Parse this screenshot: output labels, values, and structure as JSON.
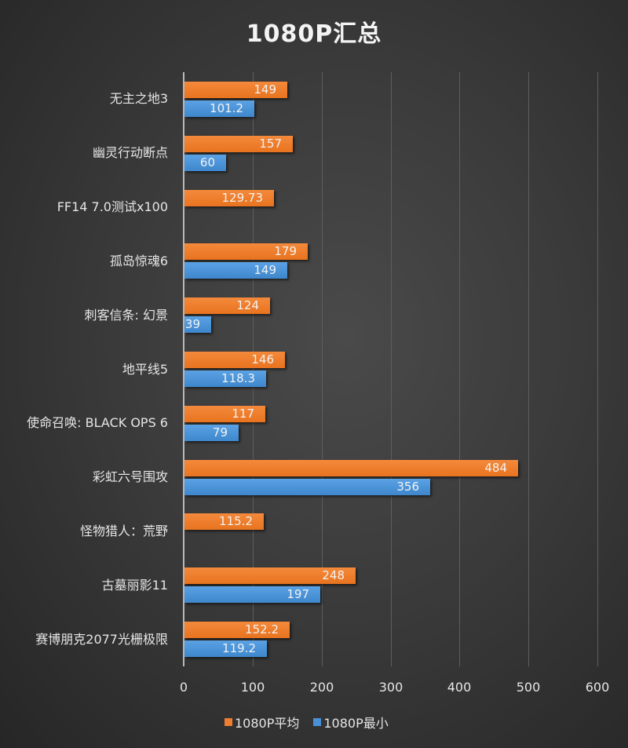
{
  "chart_data": {
    "type": "bar",
    "orientation": "horizontal",
    "title": "1080P汇总",
    "xlabel": "",
    "ylabel": "",
    "xlim": [
      0,
      600
    ],
    "x_ticks": [
      "0",
      "100",
      "200",
      "300",
      "400",
      "500",
      "600"
    ],
    "grid": true,
    "legend_position": "bottom",
    "categories": [
      "无主之地3",
      "幽灵行动断点",
      "FF14 7.0测试x100",
      "孤岛惊魂6",
      "刺客信条: 幻景",
      "地平线5",
      "使命召唤: BLACK OPS 6",
      "彩虹六号围攻",
      "怪物猎人：荒野",
      "古墓丽影11",
      "赛博朋克2077光栅极限"
    ],
    "series": [
      {
        "name": "1080P平均",
        "color": "#ED7D31",
        "values": [
          149,
          157,
          129.73,
          179,
          124,
          146,
          117,
          484,
          115.2,
          248,
          152.2
        ],
        "labels": [
          "149",
          "157",
          "129.73",
          "179",
          "124",
          "146",
          "117",
          "484",
          "115.2",
          "248",
          "152.2"
        ]
      },
      {
        "name": "1080P最小",
        "color": "#4A90D9",
        "values": [
          101.2,
          60,
          null,
          149,
          39,
          118.3,
          79,
          356,
          null,
          197,
          119.2
        ],
        "labels": [
          "101.2",
          "60",
          null,
          "149",
          "39",
          "118.3",
          "79",
          "356",
          null,
          "197",
          "119.2"
        ]
      }
    ]
  }
}
